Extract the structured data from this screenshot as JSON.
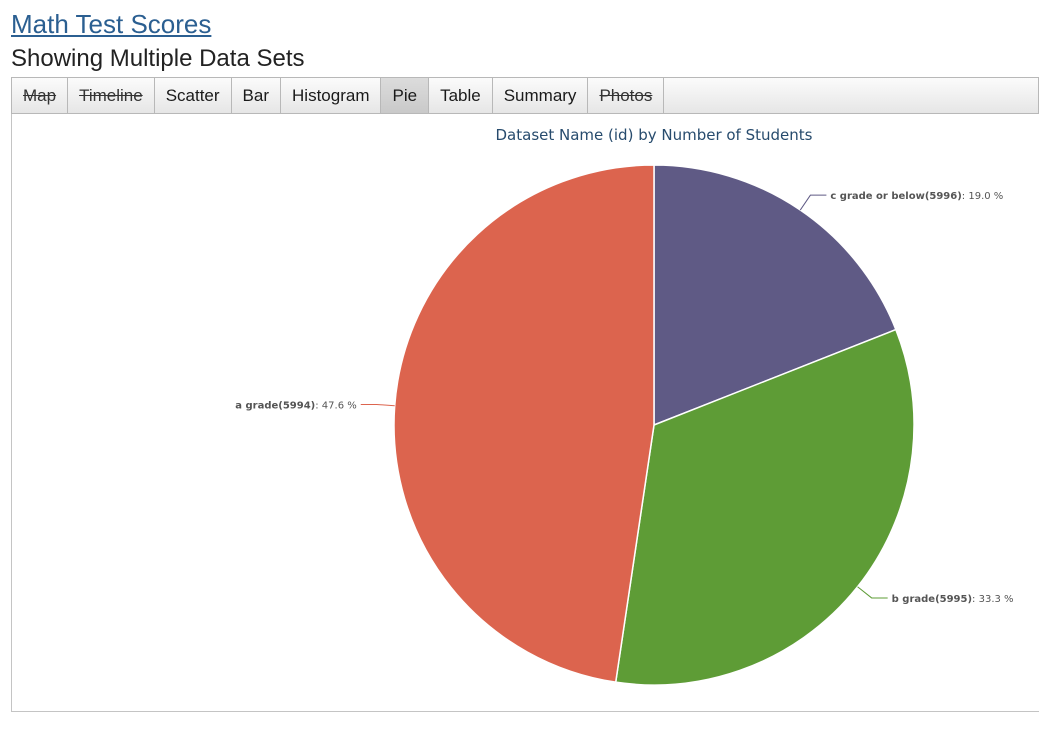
{
  "header": {
    "title": "Math Test Scores",
    "subtitle": "Showing Multiple Data Sets"
  },
  "tabs": [
    {
      "label": "Map",
      "state": "disabled"
    },
    {
      "label": "Timeline",
      "state": "disabled"
    },
    {
      "label": "Scatter",
      "state": "normal"
    },
    {
      "label": "Bar",
      "state": "normal"
    },
    {
      "label": "Histogram",
      "state": "normal"
    },
    {
      "label": "Pie",
      "state": "active"
    },
    {
      "label": "Table",
      "state": "normal"
    },
    {
      "label": "Summary",
      "state": "normal"
    },
    {
      "label": "Photos",
      "state": "disabled"
    }
  ],
  "chart_data": {
    "type": "pie",
    "title": "Dataset Name (id) by Number of Students",
    "slices": [
      {
        "name": "c grade or below(5996)",
        "percent_label": "19.0 %",
        "value": 19.0,
        "color": "#5f5a85"
      },
      {
        "name": "b grade(5995)",
        "percent_label": "33.3 %",
        "value": 33.3,
        "color": "#5e9c36"
      },
      {
        "name": "a grade(5994)",
        "percent_label": "47.6 %",
        "value": 47.6,
        "color": "#dc644e"
      }
    ]
  }
}
